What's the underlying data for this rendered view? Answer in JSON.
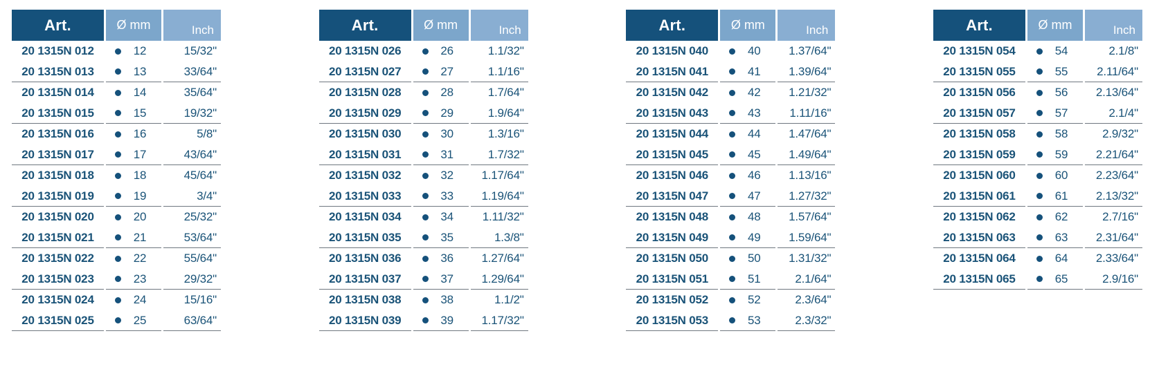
{
  "columns": {
    "art": "Art.",
    "mm": "Ø mm",
    "inch": "Inch"
  },
  "icons": {
    "dot": "●"
  },
  "colors": {
    "header_art_bg": "#15517b",
    "header_mm_bg": "#7ca6cb",
    "header_inch_bg": "#89aed2",
    "body_text": "#1a5378",
    "divider": "#6e767f"
  },
  "tables": [
    {
      "rows": [
        {
          "art": "20 1315N 012",
          "mm": "12",
          "inch": "15/32\""
        },
        {
          "art": "20 1315N 013",
          "mm": "13",
          "inch": "33/64\""
        },
        {
          "art": "20 1315N 014",
          "mm": "14",
          "inch": "35/64\""
        },
        {
          "art": "20 1315N 015",
          "mm": "15",
          "inch": "19/32\""
        },
        {
          "art": "20 1315N 016",
          "mm": "16",
          "inch": "5/8\""
        },
        {
          "art": "20 1315N 017",
          "mm": "17",
          "inch": "43/64\""
        },
        {
          "art": "20 1315N 018",
          "mm": "18",
          "inch": "45/64\""
        },
        {
          "art": "20 1315N 019",
          "mm": "19",
          "inch": "3/4\""
        },
        {
          "art": "20 1315N 020",
          "mm": "20",
          "inch": "25/32\""
        },
        {
          "art": "20 1315N 021",
          "mm": "21",
          "inch": "53/64\""
        },
        {
          "art": "20 1315N 022",
          "mm": "22",
          "inch": "55/64\""
        },
        {
          "art": "20 1315N 023",
          "mm": "23",
          "inch": "29/32\""
        },
        {
          "art": "20 1315N 024",
          "mm": "24",
          "inch": "15/16\""
        },
        {
          "art": "20 1315N 025",
          "mm": "25",
          "inch": "63/64\""
        }
      ]
    },
    {
      "rows": [
        {
          "art": "20 1315N 026",
          "mm": "26",
          "inch": "1.1/32\""
        },
        {
          "art": "20 1315N 027",
          "mm": "27",
          "inch": "1.1/16\""
        },
        {
          "art": "20 1315N 028",
          "mm": "28",
          "inch": "1.7/64\""
        },
        {
          "art": "20 1315N 029",
          "mm": "29",
          "inch": "1.9/64\""
        },
        {
          "art": "20 1315N 030",
          "mm": "30",
          "inch": "1.3/16\""
        },
        {
          "art": "20 1315N 031",
          "mm": "31",
          "inch": "1.7/32\""
        },
        {
          "art": "20 1315N 032",
          "mm": "32",
          "inch": "1.17/64\""
        },
        {
          "art": "20 1315N 033",
          "mm": "33",
          "inch": "1.19/64\""
        },
        {
          "art": "20 1315N 034",
          "mm": "34",
          "inch": "1.11/32\""
        },
        {
          "art": "20 1315N 035",
          "mm": "35",
          "inch": "1.3/8\""
        },
        {
          "art": "20 1315N 036",
          "mm": "36",
          "inch": "1.27/64\""
        },
        {
          "art": "20 1315N 037",
          "mm": "37",
          "inch": "1.29/64\""
        },
        {
          "art": "20 1315N 038",
          "mm": "38",
          "inch": "1.1/2\""
        },
        {
          "art": "20 1315N 039",
          "mm": "39",
          "inch": "1.17/32\""
        }
      ]
    },
    {
      "rows": [
        {
          "art": "20 1315N 040",
          "mm": "40",
          "inch": "1.37/64\""
        },
        {
          "art": "20 1315N 041",
          "mm": "41",
          "inch": "1.39/64\""
        },
        {
          "art": "20 1315N 042",
          "mm": "42",
          "inch": "1.21/32\""
        },
        {
          "art": "20 1315N 043",
          "mm": "43",
          "inch": "1.11/16\""
        },
        {
          "art": "20 1315N 044",
          "mm": "44",
          "inch": "1.47/64\""
        },
        {
          "art": "20 1315N 045",
          "mm": "45",
          "inch": "1.49/64\""
        },
        {
          "art": "20 1315N 046",
          "mm": "46",
          "inch": "1.13/16\""
        },
        {
          "art": "20 1315N 047",
          "mm": "47",
          "inch": "1.27/32\""
        },
        {
          "art": "20 1315N 048",
          "mm": "48",
          "inch": "1.57/64\""
        },
        {
          "art": "20 1315N 049",
          "mm": "49",
          "inch": "1.59/64\""
        },
        {
          "art": "20 1315N 050",
          "mm": "50",
          "inch": "1.31/32\""
        },
        {
          "art": "20 1315N 051",
          "mm": "51",
          "inch": "2.1/64\""
        },
        {
          "art": "20 1315N 052",
          "mm": "52",
          "inch": "2.3/64\""
        },
        {
          "art": "20 1315N 053",
          "mm": "53",
          "inch": "2.3/32\""
        }
      ]
    },
    {
      "rows": [
        {
          "art": "20 1315N 054",
          "mm": "54",
          "inch": "2.1/8\""
        },
        {
          "art": "20 1315N 055",
          "mm": "55",
          "inch": "2.11/64\""
        },
        {
          "art": "20 1315N 056",
          "mm": "56",
          "inch": "2.13/64\""
        },
        {
          "art": "20 1315N 057",
          "mm": "57",
          "inch": "2.1/4\""
        },
        {
          "art": "20 1315N 058",
          "mm": "58",
          "inch": "2.9/32\""
        },
        {
          "art": "20 1315N 059",
          "mm": "59",
          "inch": "2.21/64\""
        },
        {
          "art": "20 1315N 060",
          "mm": "60",
          "inch": "2.23/64\""
        },
        {
          "art": "20 1315N 061",
          "mm": "61",
          "inch": "2.13/32\""
        },
        {
          "art": "20 1315N 062",
          "mm": "62",
          "inch": "2.7/16\""
        },
        {
          "art": "20 1315N 063",
          "mm": "63",
          "inch": "2.31/64\""
        },
        {
          "art": "20 1315N 064",
          "mm": "64",
          "inch": "2.33/64\""
        },
        {
          "art": "20 1315N 065",
          "mm": "65",
          "inch": "2.9/16\""
        }
      ]
    }
  ]
}
